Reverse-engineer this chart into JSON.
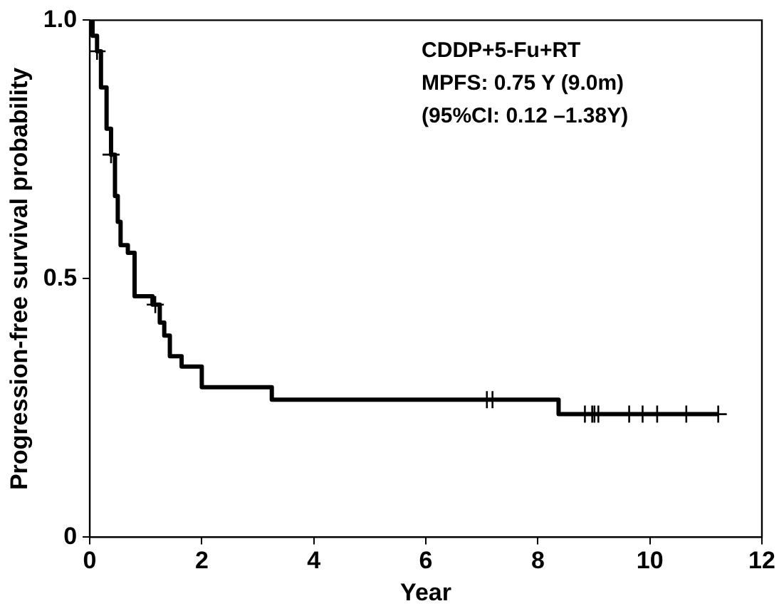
{
  "chart_data": {
    "type": "step",
    "xlabel": "Year",
    "ylabel": "Progression-free survival probability",
    "annotations": [
      "CDDP+5-Fu+RT",
      "MPFS: 0.75 Y (9.0m)",
      "(95%CI: 0.12 –1.38Y)"
    ],
    "xlim": [
      0,
      12
    ],
    "xticks": [
      0,
      2,
      4,
      6,
      8,
      10,
      12
    ],
    "ylim": [
      0,
      1
    ],
    "yticks": [
      0,
      {
        "value": 0.5,
        "label": "0.5"
      },
      {
        "value": 1,
        "label": "1.0"
      }
    ],
    "grid": false,
    "legend": false,
    "series": [
      {
        "color": "#000000",
        "marker": "none",
        "x": [
          0,
          0.05,
          0.13,
          0.2,
          0.3,
          0.38,
          0.45,
          0.5,
          0.55,
          0.68,
          0.8,
          1.12,
          1.25,
          1.33,
          1.43,
          1.64,
          2.0,
          3.25,
          8.37,
          11.22
        ],
        "values": [
          1.0,
          0.97,
          0.94,
          0.87,
          0.79,
          0.74,
          0.66,
          0.61,
          0.565,
          0.55,
          0.466,
          0.45,
          0.415,
          0.39,
          0.35,
          0.33,
          0.29,
          0.266,
          0.238,
          0.238
        ]
      },
      {
        "type": "scatter",
        "color": "#000000",
        "marker": "cross",
        "x": [
          0.13,
          0.38,
          1.17,
          7.09,
          7.19,
          8.84,
          8.97,
          9.01,
          9.08,
          9.63,
          9.87,
          10.13,
          10.65,
          11.22
        ],
        "values": [
          0.94,
          0.74,
          0.45,
          0.266,
          0.266,
          0.238,
          0.238,
          0.238,
          0.238,
          0.238,
          0.238,
          0.238,
          0.238,
          0.238
        ]
      }
    ]
  }
}
